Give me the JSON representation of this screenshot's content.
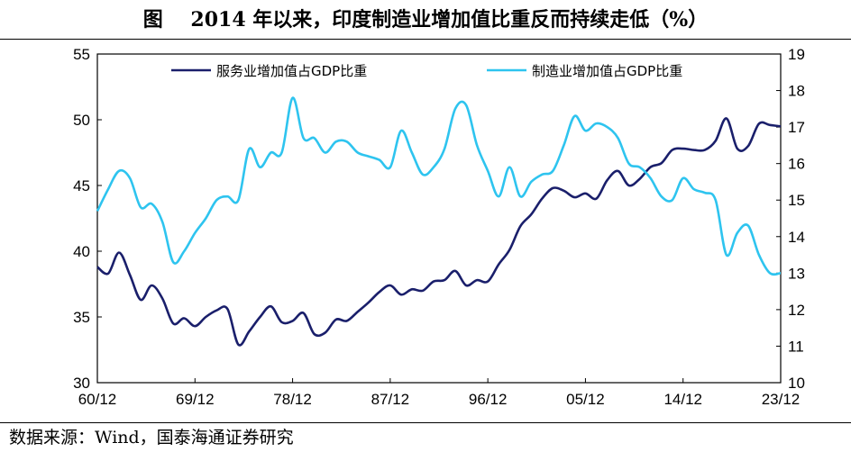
{
  "title": "图    2014 年以来，印度制造业增加值比重反而持续走低（%）",
  "source": "数据来源：Wind，国泰海通证券研究",
  "chart_data": {
    "type": "line",
    "colors": {
      "services": "#1a1f6b",
      "manufacturing": "#2ec4ef"
    },
    "x_ticks": [
      "60/12",
      "69/12",
      "78/12",
      "87/12",
      "96/12",
      "05/12",
      "14/12",
      "23/12"
    ],
    "x_range": [
      1960,
      2023
    ],
    "y_left": {
      "range": [
        30,
        55
      ],
      "ticks": [
        "30",
        "35",
        "40",
        "45",
        "50",
        "55"
      ]
    },
    "y_right": {
      "range": [
        10,
        19
      ],
      "ticks": [
        "10",
        "11",
        "12",
        "13",
        "14",
        "15",
        "16",
        "17",
        "18",
        "19"
      ]
    },
    "legend": [
      "服务业增加值占GDP比重",
      "制造业增加值占GDP比重"
    ],
    "series": [
      {
        "name": "服务业增加值占GDP比重",
        "axis": "left",
        "x": [
          1960,
          1961,
          1962,
          1963,
          1964,
          1965,
          1966,
          1967,
          1968,
          1969,
          1970,
          1971,
          1972,
          1973,
          1974,
          1975,
          1976,
          1977,
          1978,
          1979,
          1980,
          1981,
          1982,
          1983,
          1984,
          1985,
          1986,
          1987,
          1988,
          1989,
          1990,
          1991,
          1992,
          1993,
          1994,
          1995,
          1996,
          1997,
          1998,
          1999,
          2000,
          2001,
          2002,
          2003,
          2004,
          2005,
          2006,
          2007,
          2008,
          2009,
          2010,
          2011,
          2012,
          2013,
          2014,
          2015,
          2016,
          2017,
          2018,
          2019,
          2020,
          2021,
          2022,
          2023
        ],
        "values": [
          38.8,
          38.3,
          39.9,
          38.2,
          36.3,
          37.4,
          36.4,
          34.5,
          34.9,
          34.3,
          35.0,
          35.5,
          35.6,
          32.9,
          33.9,
          35.0,
          35.8,
          34.6,
          34.7,
          35.3,
          33.7,
          33.8,
          34.8,
          34.7,
          35.4,
          36.1,
          36.9,
          37.4,
          36.7,
          37.1,
          37.0,
          37.7,
          37.8,
          38.5,
          37.4,
          37.8,
          37.7,
          39.0,
          40.1,
          41.9,
          42.8,
          44.0,
          44.8,
          44.6,
          44.1,
          44.4,
          44.0,
          45.4,
          46.1,
          45.0,
          45.5,
          46.4,
          46.7,
          47.7,
          47.8,
          47.7,
          47.7,
          48.4,
          50.1,
          47.8,
          48.0,
          49.7,
          49.6,
          49.5
        ]
      },
      {
        "name": "制造业增加值占GDP比重",
        "axis": "right",
        "x": [
          1960,
          1961,
          1962,
          1963,
          1964,
          1965,
          1966,
          1967,
          1968,
          1969,
          1970,
          1971,
          1972,
          1973,
          1974,
          1975,
          1976,
          1977,
          1978,
          1979,
          1980,
          1981,
          1982,
          1983,
          1984,
          1985,
          1986,
          1987,
          1988,
          1989,
          1990,
          1991,
          1992,
          1993,
          1994,
          1995,
          1996,
          1997,
          1998,
          1999,
          2000,
          2001,
          2002,
          2003,
          2004,
          2005,
          2006,
          2007,
          2008,
          2009,
          2010,
          2011,
          2012,
          2013,
          2014,
          2015,
          2016,
          2017,
          2018,
          2019,
          2020,
          2021,
          2022,
          2023
        ],
        "values": [
          14.7,
          15.3,
          15.8,
          15.6,
          14.8,
          14.9,
          14.4,
          13.3,
          13.6,
          14.1,
          14.5,
          15.0,
          15.1,
          15.0,
          16.4,
          15.9,
          16.3,
          16.3,
          17.8,
          16.7,
          16.7,
          16.3,
          16.6,
          16.6,
          16.3,
          16.2,
          16.1,
          15.9,
          16.9,
          16.3,
          15.7,
          15.9,
          16.4,
          17.5,
          17.6,
          16.5,
          15.8,
          15.1,
          15.9,
          15.1,
          15.5,
          15.7,
          15.8,
          16.5,
          17.3,
          16.9,
          17.1,
          17.0,
          16.7,
          16.0,
          15.9,
          15.6,
          15.1,
          15.0,
          15.6,
          15.3,
          15.2,
          15.0,
          13.5,
          14.1,
          14.3,
          13.5,
          13.0,
          13.0
        ]
      }
    ]
  }
}
